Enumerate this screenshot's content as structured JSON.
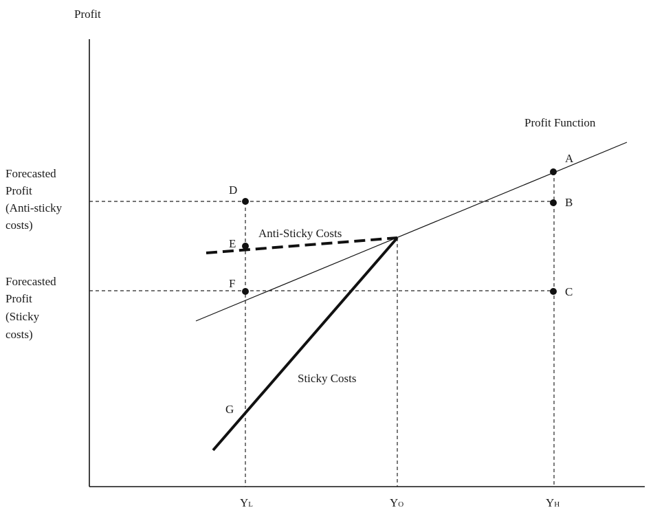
{
  "axes": {
    "y_label": "Profit"
  },
  "left_labels": {
    "anti_sticky": [
      "Forecasted",
      "Profit",
      "(Anti-sticky",
      "costs)"
    ],
    "sticky": [
      "Forecasted",
      "Profit",
      "(Sticky",
      "costs)"
    ]
  },
  "x_ticks": {
    "yl": {
      "main": "Y",
      "sub": "L"
    },
    "yo": {
      "main": "Y",
      "sub": "O"
    },
    "yh": {
      "main": "Y",
      "sub": "H"
    }
  },
  "curves": {
    "profit_function": "Profit Function",
    "anti_sticky": "Anti-Sticky Costs",
    "sticky": "Sticky Costs"
  },
  "points": {
    "a": "A",
    "b": "B",
    "c": "C",
    "d": "D",
    "e": "E",
    "f": "F",
    "g": "G"
  }
}
